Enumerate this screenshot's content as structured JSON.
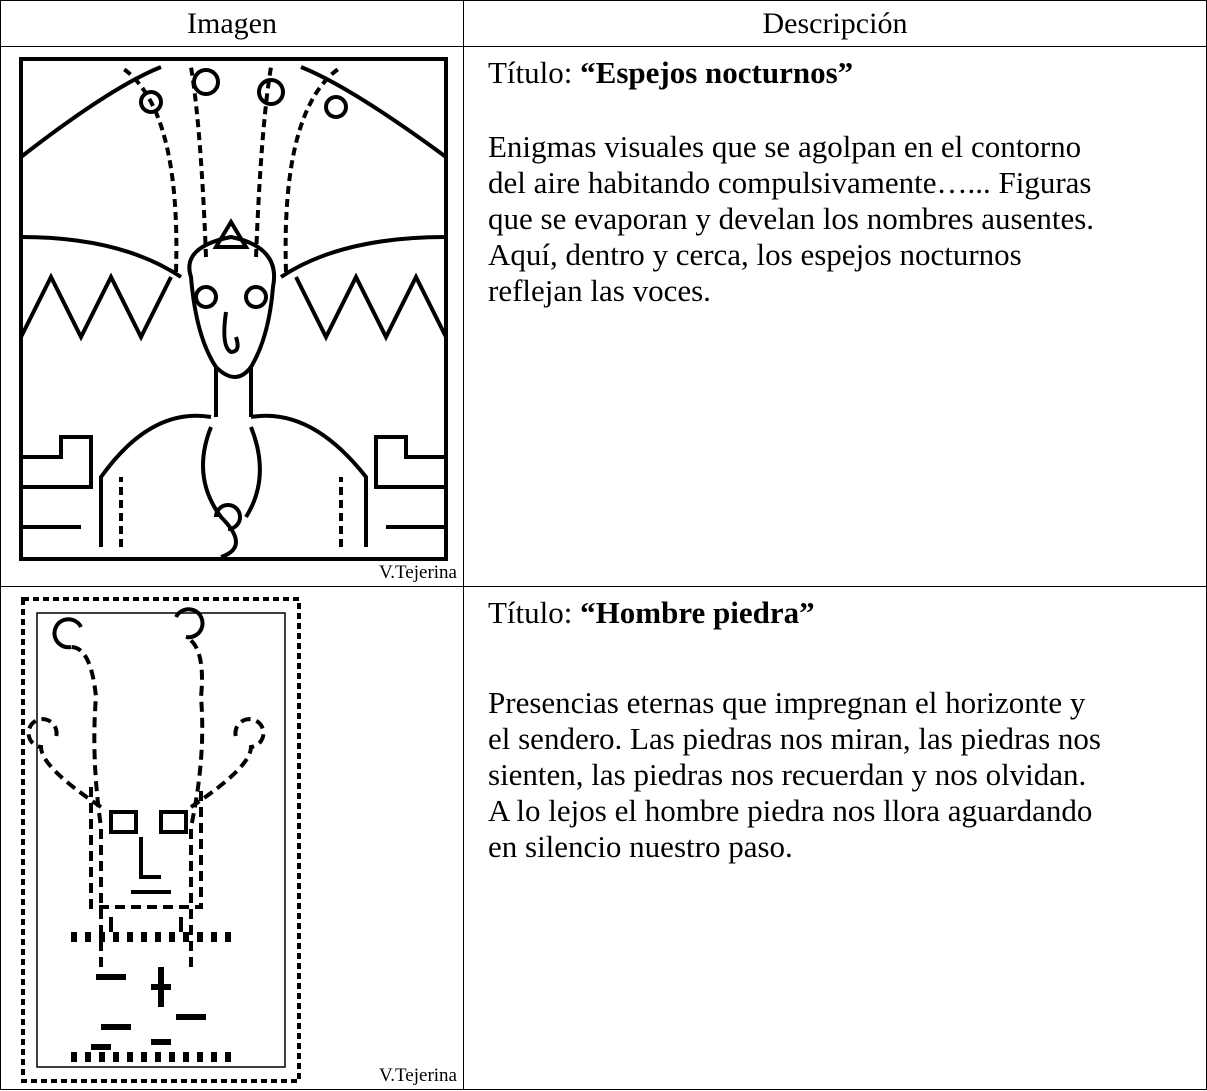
{
  "table": {
    "header": [
      "Imagen",
      "Descripción"
    ],
    "rows": [
      {
        "credit": "V.Tejerina",
        "title_label": "Título:",
        "title": "“Espejos nocturnos”",
        "description": [
          "Enigmas visuales que se agolpan en el contorno",
          "del aire habitando compulsivamente…... Figuras",
          "que se evaporan y develan los nombres ausentes.",
          "Aquí, dentro y cerca, los espejos nocturnos",
          "reflejan las voces."
        ]
      },
      {
        "credit": "V.Tejerina",
        "title_label": "Título:",
        "title": "“Hombre piedra”",
        "description": [
          "Presencias eternas que impregnan el horizonte y",
          "el sendero. Las piedras nos miran, las piedras nos",
          "sienten, las piedras nos recuerdan y nos olvidan.",
          "A lo lejos el hombre piedra nos llora aguardando",
          "en silencio nuestro paso."
        ]
      }
    ]
  }
}
